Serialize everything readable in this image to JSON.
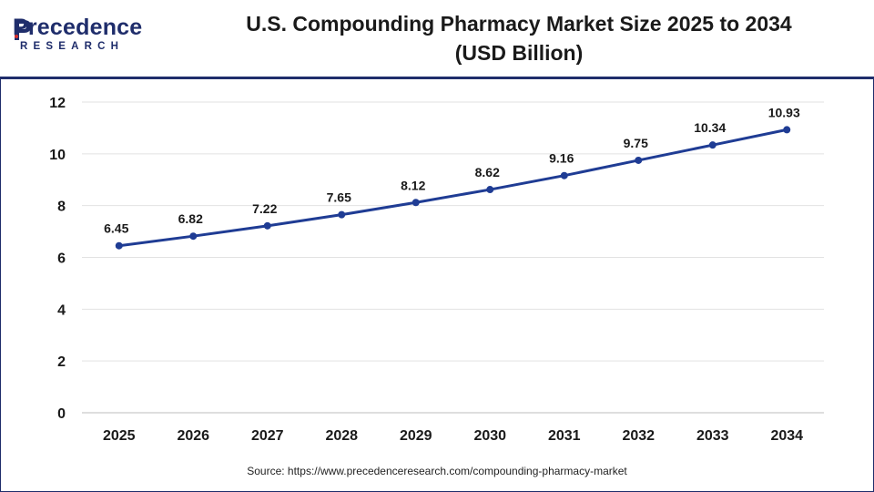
{
  "brand": {
    "name_main": "Precedence",
    "name_sub": "RESEARCH",
    "color": "#1f2d6b"
  },
  "chart_data": {
    "type": "line",
    "title_line1": "U.S. Compounding Pharmacy Market Size 2025 to 2034",
    "title_line2": "(USD Billion)",
    "xlabel": "",
    "ylabel": "",
    "categories": [
      "2025",
      "2026",
      "2027",
      "2028",
      "2029",
      "2030",
      "2031",
      "2032",
      "2033",
      "2034"
    ],
    "series": [
      {
        "values": [
          6.45,
          6.82,
          7.22,
          7.65,
          8.12,
          8.62,
          9.16,
          9.75,
          10.34,
          10.93
        ],
        "labels": [
          "6.45",
          "6.82",
          "7.22",
          "7.65",
          "8.12",
          "8.62",
          "9.16",
          "9.75",
          "10.34",
          "10.93"
        ],
        "color": "#1f3c94"
      }
    ],
    "ylim": [
      0,
      12
    ],
    "yticks": [
      "0",
      "2",
      "4",
      "6",
      "8",
      "10",
      "12"
    ],
    "grid": true
  },
  "source": "Source: https://www.precedenceresearch.com/compounding-pharmacy-market"
}
